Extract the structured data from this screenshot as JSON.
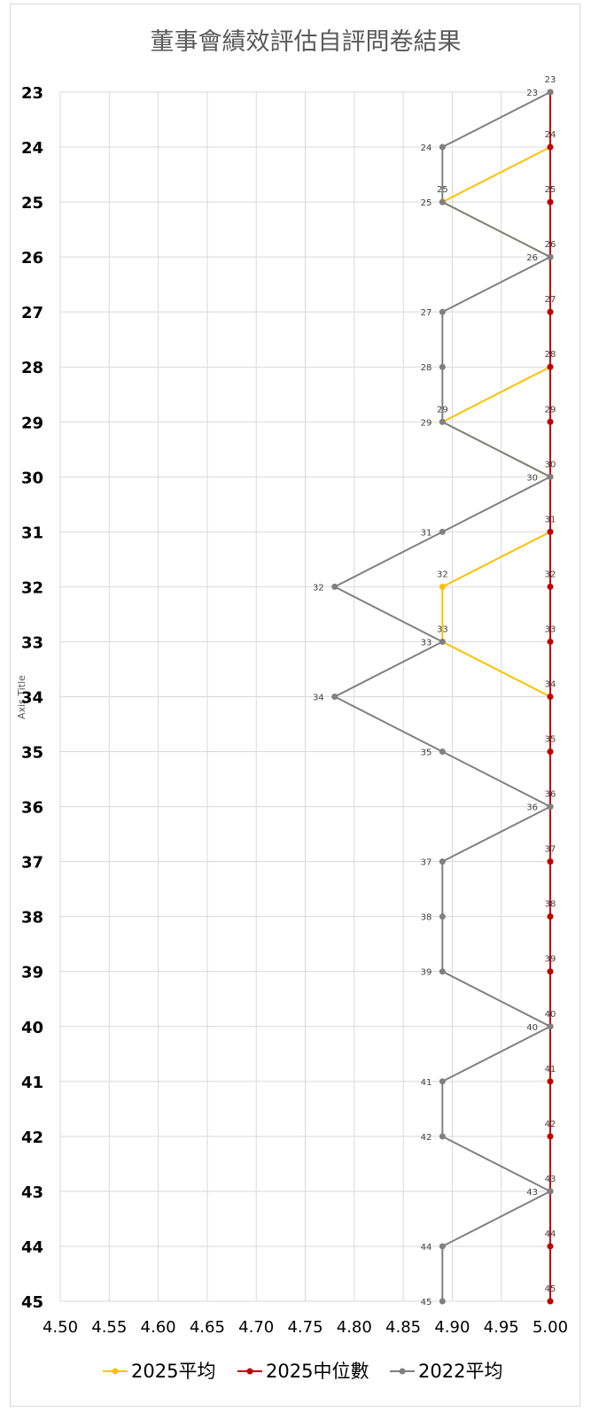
{
  "chart_data": {
    "type": "line",
    "title": "董事會績效評估自評問卷結果",
    "ylabel": "Axis Title",
    "xlabel": "",
    "xlim": [
      4.5,
      5.0
    ],
    "x_ticks": [
      "4.50",
      "4.55",
      "4.60",
      "4.65",
      "4.70",
      "4.75",
      "4.80",
      "4.85",
      "4.90",
      "4.95",
      "5.00"
    ],
    "ylim": [
      23,
      45
    ],
    "y_ticks": [
      "23",
      "24",
      "25",
      "26",
      "27",
      "28",
      "29",
      "30",
      "31",
      "32",
      "33",
      "34",
      "35",
      "36",
      "37",
      "38",
      "39",
      "40",
      "41",
      "42",
      "43",
      "44",
      "45"
    ],
    "grid": true,
    "legend_position": "bottom",
    "series": [
      {
        "name": "2025平均",
        "color": "#FFC000",
        "points": [
          {
            "y": 23,
            "x": 5.0
          },
          {
            "y": 24,
            "x": 5.0
          },
          {
            "y": 25,
            "x": 4.89
          },
          {
            "y": 26,
            "x": 5.0
          },
          {
            "y": 27,
            "x": 5.0
          },
          {
            "y": 28,
            "x": 5.0
          },
          {
            "y": 29,
            "x": 4.89
          },
          {
            "y": 30,
            "x": 5.0
          },
          {
            "y": 31,
            "x": 5.0
          },
          {
            "y": 32,
            "x": 4.89
          },
          {
            "y": 33,
            "x": 4.89
          },
          {
            "y": 34,
            "x": 5.0
          },
          {
            "y": 35,
            "x": 5.0
          },
          {
            "y": 36,
            "x": 5.0
          },
          {
            "y": 37,
            "x": 5.0
          },
          {
            "y": 38,
            "x": 5.0
          },
          {
            "y": 39,
            "x": 5.0
          },
          {
            "y": 40,
            "x": 5.0
          },
          {
            "y": 41,
            "x": 5.0
          },
          {
            "y": 42,
            "x": 5.0
          },
          {
            "y": 43,
            "x": 5.0
          },
          {
            "y": 44,
            "x": 5.0
          },
          {
            "y": 45,
            "x": 5.0
          }
        ]
      },
      {
        "name": "2025中位數",
        "color": "#C00000",
        "points": [
          {
            "y": 23,
            "x": 5.0
          },
          {
            "y": 24,
            "x": 5.0
          },
          {
            "y": 25,
            "x": 5.0
          },
          {
            "y": 26,
            "x": 5.0
          },
          {
            "y": 27,
            "x": 5.0
          },
          {
            "y": 28,
            "x": 5.0
          },
          {
            "y": 29,
            "x": 5.0
          },
          {
            "y": 30,
            "x": 5.0
          },
          {
            "y": 31,
            "x": 5.0
          },
          {
            "y": 32,
            "x": 5.0
          },
          {
            "y": 33,
            "x": 5.0
          },
          {
            "y": 34,
            "x": 5.0
          },
          {
            "y": 35,
            "x": 5.0
          },
          {
            "y": 36,
            "x": 5.0
          },
          {
            "y": 37,
            "x": 5.0
          },
          {
            "y": 38,
            "x": 5.0
          },
          {
            "y": 39,
            "x": 5.0
          },
          {
            "y": 40,
            "x": 5.0
          },
          {
            "y": 41,
            "x": 5.0
          },
          {
            "y": 42,
            "x": 5.0
          },
          {
            "y": 43,
            "x": 5.0
          },
          {
            "y": 44,
            "x": 5.0
          },
          {
            "y": 45,
            "x": 5.0
          }
        ]
      },
      {
        "name": "2022平均",
        "color": "#808080",
        "points": [
          {
            "y": 23,
            "x": 5.0
          },
          {
            "y": 24,
            "x": 4.89
          },
          {
            "y": 25,
            "x": 4.89
          },
          {
            "y": 26,
            "x": 5.0
          },
          {
            "y": 27,
            "x": 4.89
          },
          {
            "y": 28,
            "x": 4.89
          },
          {
            "y": 29,
            "x": 4.89
          },
          {
            "y": 30,
            "x": 5.0
          },
          {
            "y": 31,
            "x": 4.89
          },
          {
            "y": 32,
            "x": 4.78
          },
          {
            "y": 33,
            "x": 4.89
          },
          {
            "y": 34,
            "x": 4.78
          },
          {
            "y": 35,
            "x": 4.89
          },
          {
            "y": 36,
            "x": 5.0
          },
          {
            "y": 37,
            "x": 4.89
          },
          {
            "y": 38,
            "x": 4.89
          },
          {
            "y": 39,
            "x": 4.89
          },
          {
            "y": 40,
            "x": 5.0
          },
          {
            "y": 41,
            "x": 4.89
          },
          {
            "y": 42,
            "x": 4.89
          },
          {
            "y": 43,
            "x": 5.0
          },
          {
            "y": 44,
            "x": 4.89
          },
          {
            "y": 45,
            "x": 4.89
          }
        ]
      }
    ],
    "legend": [
      {
        "label": "2025平均",
        "color": "#FFC000"
      },
      {
        "label": "2025中位數",
        "color": "#C00000"
      },
      {
        "label": "2022平均",
        "color": "#808080"
      }
    ]
  }
}
